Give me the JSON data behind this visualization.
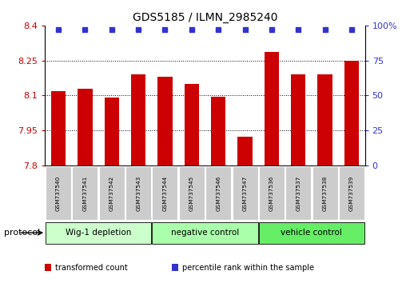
{
  "title": "GDS5185 / ILMN_2985240",
  "samples": [
    "GSM737540",
    "GSM737541",
    "GSM737542",
    "GSM737543",
    "GSM737544",
    "GSM737545",
    "GSM737546",
    "GSM737547",
    "GSM737536",
    "GSM737537",
    "GSM737538",
    "GSM737539"
  ],
  "bar_values": [
    8.12,
    8.13,
    8.09,
    8.19,
    8.18,
    8.15,
    8.095,
    7.925,
    8.285,
    8.19,
    8.19,
    8.25
  ],
  "percentile_values": [
    97,
    97,
    97,
    97,
    97,
    97,
    97,
    97,
    97,
    97,
    97,
    97
  ],
  "bar_color": "#cc0000",
  "percentile_color": "#3333cc",
  "ymin": 7.8,
  "ymax": 8.4,
  "y2min": 0,
  "y2max": 100,
  "yticks": [
    7.8,
    7.95,
    8.1,
    8.25,
    8.4
  ],
  "y2ticks": [
    0,
    25,
    50,
    75,
    100
  ],
  "grid_lines": [
    7.95,
    8.1,
    8.25
  ],
  "groups": [
    {
      "label": "Wig-1 depletion",
      "start": 0,
      "end": 4,
      "color": "#ccffcc"
    },
    {
      "label": "negative control",
      "start": 4,
      "end": 8,
      "color": "#aaffaa"
    },
    {
      "label": "vehicle control",
      "start": 8,
      "end": 12,
      "color": "#66ee66"
    }
  ],
  "protocol_label": "protocol",
  "legend": [
    {
      "color": "#cc0000",
      "label": "transformed count"
    },
    {
      "color": "#3333cc",
      "label": "percentile rank within the sample"
    }
  ],
  "bar_width": 0.55,
  "sample_box_color": "#cccccc",
  "spine_color": "#000000"
}
